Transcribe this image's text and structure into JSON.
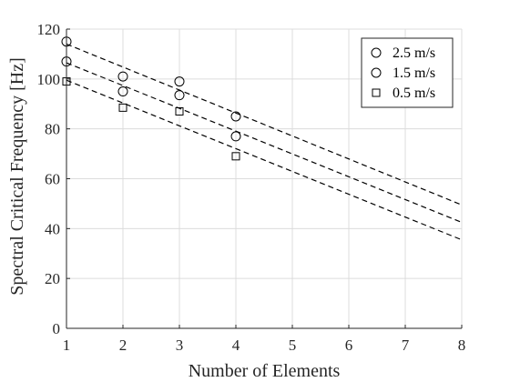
{
  "chart_data": {
    "type": "scatter",
    "title": "",
    "xlabel": "Number of Elements",
    "ylabel": "Spectral Critical Frequency [Hz]",
    "xlim": [
      1,
      8
    ],
    "ylim": [
      0,
      120
    ],
    "xticks": [
      "1",
      "2",
      "3",
      "4",
      "5",
      "6",
      "7",
      "8"
    ],
    "yticks": [
      "0",
      "20",
      "40",
      "60",
      "80",
      "100",
      "120"
    ],
    "grid": true,
    "legend_position": "top-right",
    "series": [
      {
        "name": "2.5 m/s",
        "marker": "circle",
        "x": [
          1,
          2,
          3,
          4
        ],
        "y": [
          115,
          101,
          99,
          85
        ],
        "fit": {
          "x": [
            1,
            8
          ],
          "y": [
            114,
            49.5
          ]
        }
      },
      {
        "name": "1.5 m/s",
        "marker": "circle",
        "x": [
          1,
          2,
          3,
          4
        ],
        "y": [
          107,
          95,
          93.5,
          77
        ],
        "fit": {
          "x": [
            1,
            8
          ],
          "y": [
            106.5,
            42.5
          ]
        }
      },
      {
        "name": "0.5 m/s",
        "marker": "square",
        "x": [
          1,
          2,
          3,
          4
        ],
        "y": [
          99,
          88.5,
          87,
          69
        ],
        "fit": {
          "x": [
            1,
            8
          ],
          "y": [
            99.5,
            35.5
          ]
        }
      }
    ]
  }
}
